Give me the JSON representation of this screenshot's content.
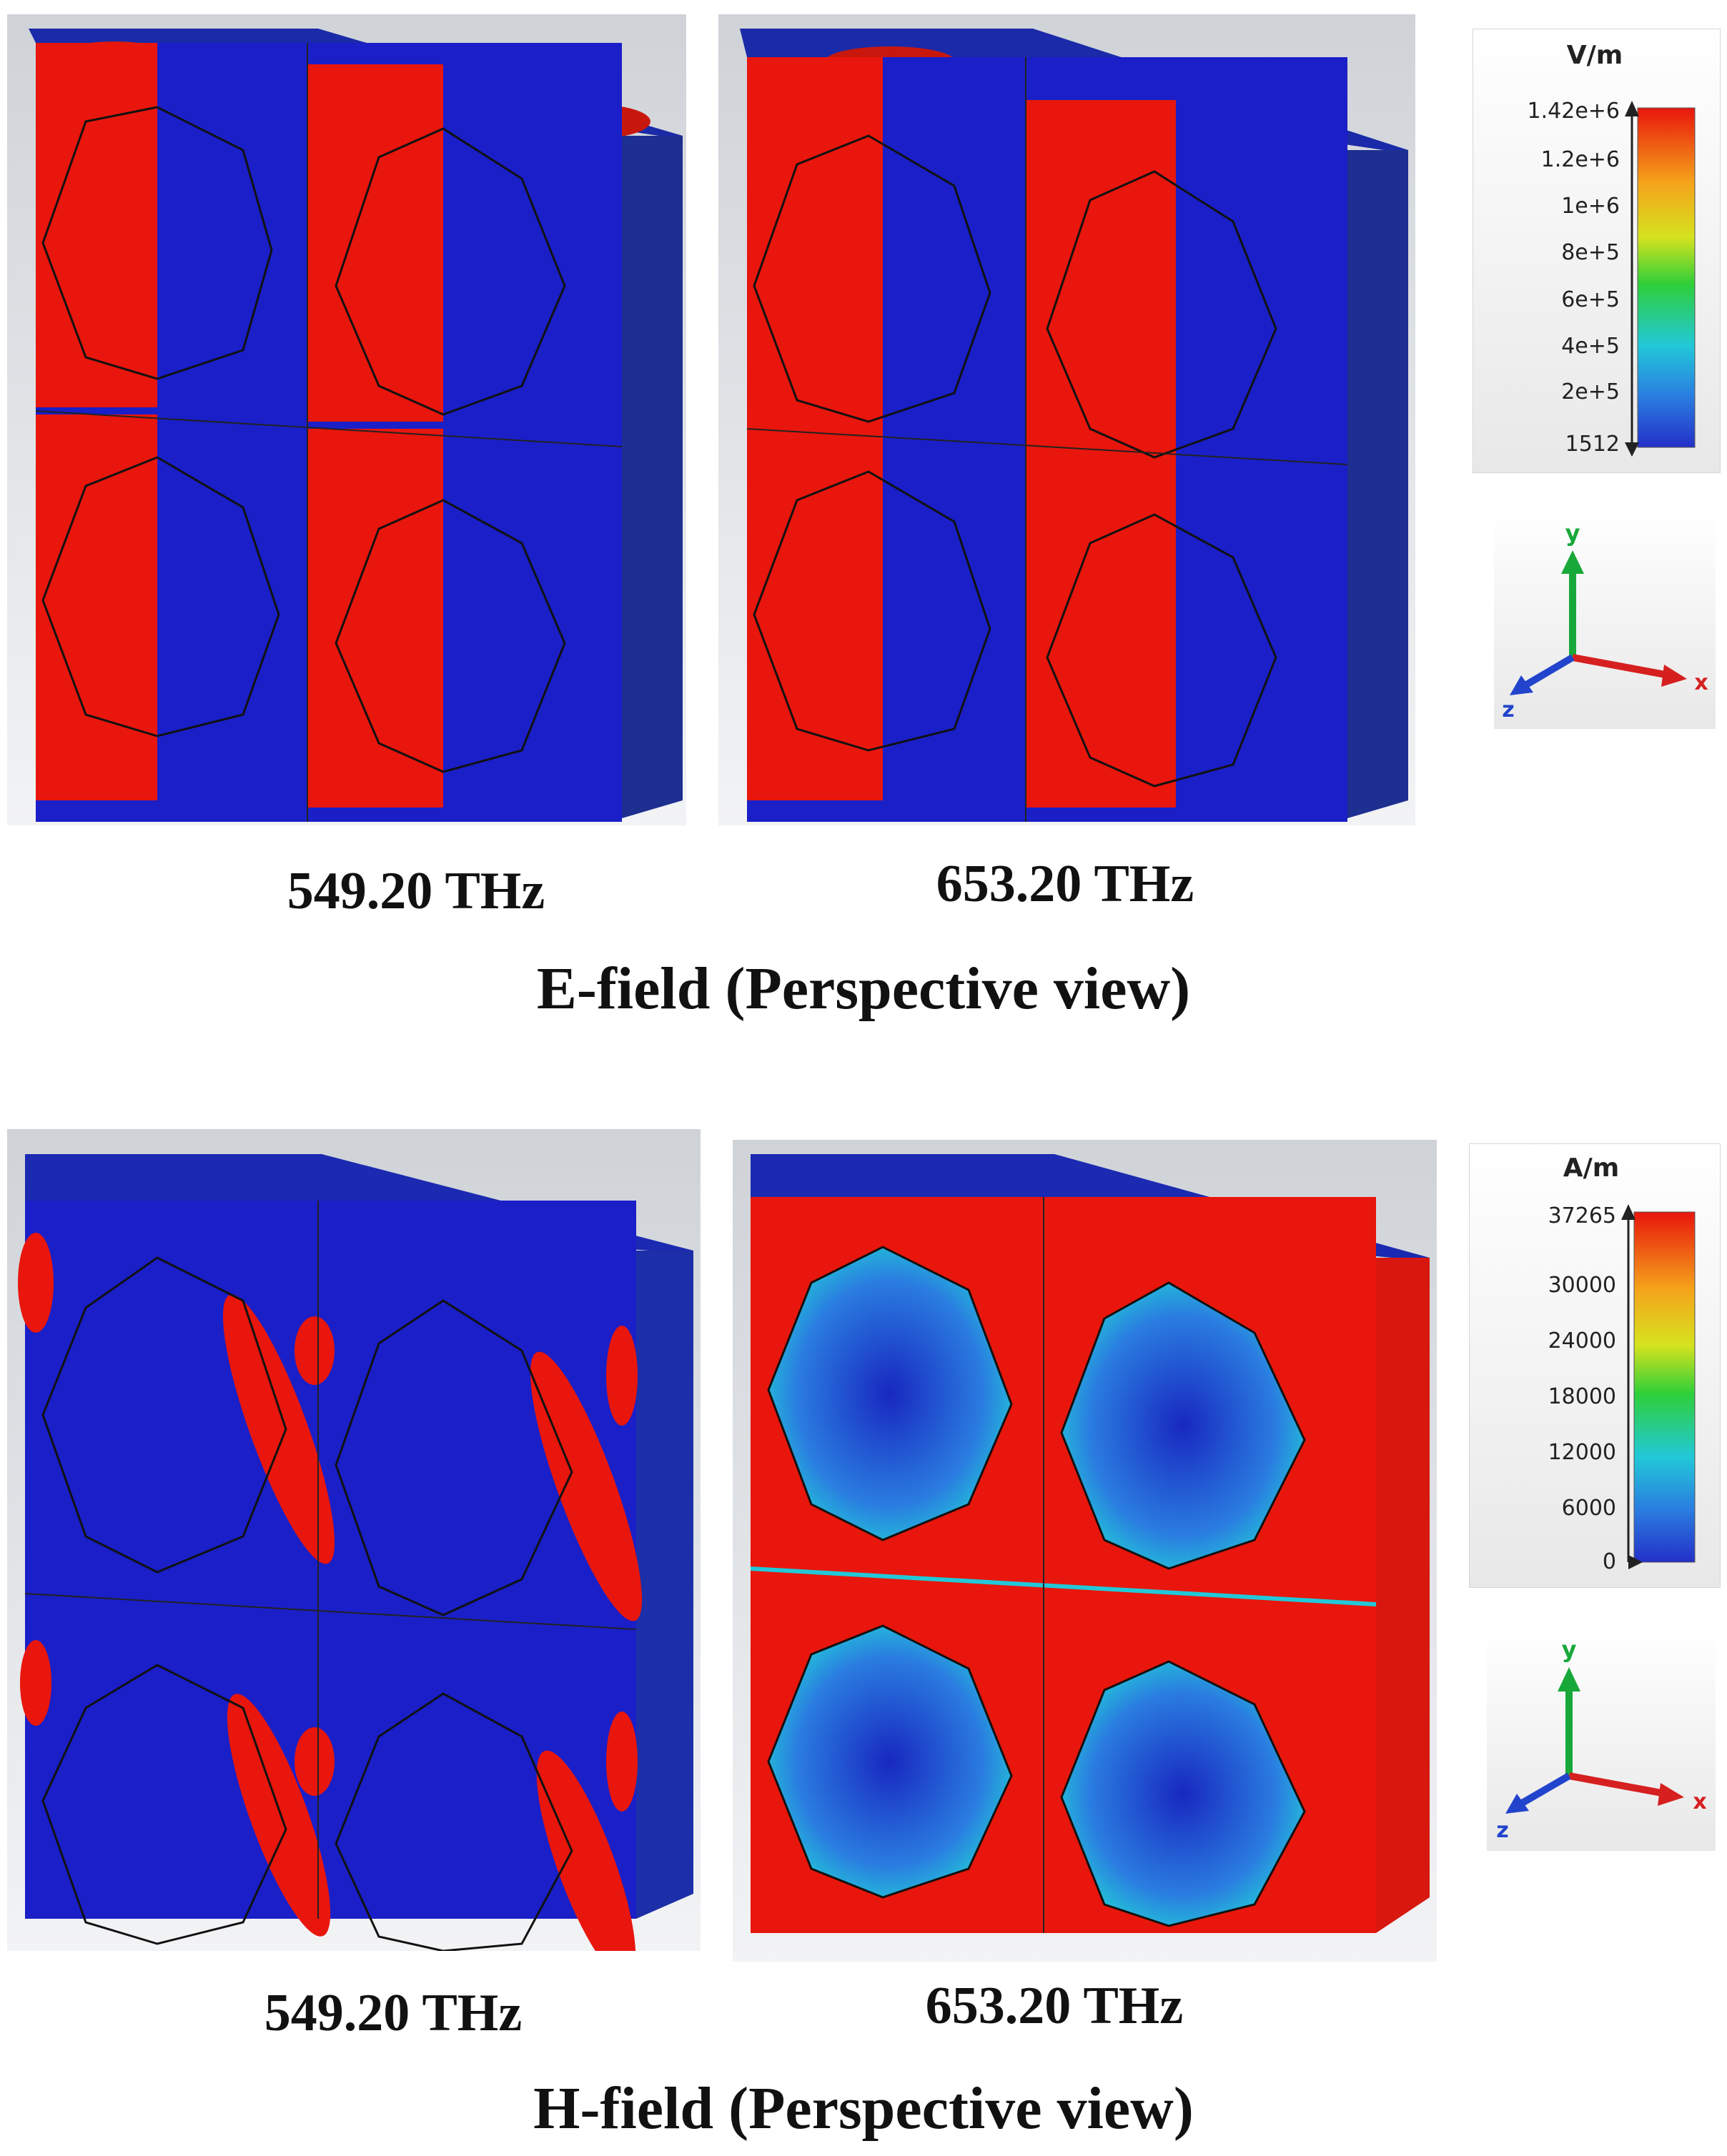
{
  "efield": {
    "section_title": "E-field (Perspective view)",
    "panels": [
      {
        "label": "549.20 THz"
      },
      {
        "label": "653.20 THz"
      }
    ],
    "colorbar": {
      "unit": "V/m",
      "ticks": [
        "1.42e+6",
        "1.2e+6",
        "1e+6",
        "8e+5",
        "6e+5",
        "4e+5",
        "2e+5",
        "1512"
      ]
    }
  },
  "hfield": {
    "section_title": "H-field (Perspective view)",
    "panels": [
      {
        "label": "549.20 THz"
      },
      {
        "label": "653.20 THz"
      }
    ],
    "colorbar": {
      "unit": "A/m",
      "ticks": [
        "37265",
        "30000",
        "24000",
        "18000",
        "12000",
        "6000",
        "0"
      ]
    }
  },
  "axes": {
    "x": "x",
    "y": "y",
    "z": "z"
  },
  "colors": {
    "field_high": "#e8160c",
    "field_low": "#1a1fc8",
    "field_mid": "#2ecf3a",
    "axis_x": "#d62020",
    "axis_y": "#18a83a",
    "axis_z": "#2244cc"
  }
}
